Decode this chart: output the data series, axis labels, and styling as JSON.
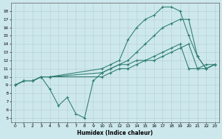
{
  "xlabel": "Humidex (Indice chaleur)",
  "ylabel": "",
  "bg_color": "#cce8ec",
  "line_color": "#2e7d6e",
  "grid_color": "#b8d0d4",
  "xlim": [
    -0.5,
    23.5
  ],
  "ylim": [
    4.5,
    19
  ],
  "xticks": [
    0,
    1,
    2,
    3,
    4,
    5,
    6,
    7,
    8,
    9,
    10,
    11,
    12,
    13,
    14,
    15,
    16,
    17,
    18,
    19,
    20,
    21,
    22,
    23
  ],
  "yticks": [
    5,
    6,
    7,
    8,
    9,
    10,
    11,
    12,
    13,
    14,
    15,
    16,
    17,
    18
  ],
  "lines": [
    {
      "x": [
        0,
        1,
        2,
        3,
        4,
        10,
        11,
        12,
        13,
        14,
        15,
        16,
        17,
        18,
        19,
        20,
        21,
        22,
        23
      ],
      "y": [
        9,
        9.5,
        9.5,
        10,
        10,
        11,
        11.5,
        12,
        14.5,
        16,
        17,
        17.5,
        18.5,
        18.5,
        18,
        15,
        12.5,
        11,
        11.5
      ]
    },
    {
      "x": [
        0,
        1,
        2,
        3,
        4,
        10,
        11,
        12,
        13,
        14,
        15,
        16,
        17,
        18,
        19,
        20,
        21,
        22,
        23
      ],
      "y": [
        9,
        9.5,
        9.5,
        10,
        10,
        10.5,
        11,
        11.5,
        12,
        13,
        14,
        15,
        16,
        16.5,
        17,
        17,
        12.5,
        11,
        11.5
      ]
    },
    {
      "x": [
        0,
        1,
        2,
        3,
        4,
        10,
        11,
        12,
        13,
        14,
        15,
        16,
        17,
        18,
        19,
        20,
        21,
        22,
        23
      ],
      "y": [
        9,
        9.5,
        9.5,
        10,
        10,
        10,
        10.5,
        11,
        11,
        11.5,
        12,
        12,
        12.5,
        13,
        13.5,
        14,
        11,
        11,
        11.5
      ]
    },
    {
      "x": [
        0,
        1,
        2,
        3,
        4,
        5,
        6,
        7,
        8,
        9,
        10,
        11,
        12,
        13,
        14,
        15,
        16,
        17,
        18,
        19,
        20,
        21,
        22,
        23
      ],
      "y": [
        9,
        9.5,
        9.5,
        10,
        8.5,
        6.5,
        7.5,
        5.5,
        5,
        9.5,
        10.5,
        11,
        11.5,
        11.5,
        12,
        12,
        12.5,
        13,
        13.5,
        14,
        11,
        11,
        11.5,
        11.5
      ]
    }
  ]
}
